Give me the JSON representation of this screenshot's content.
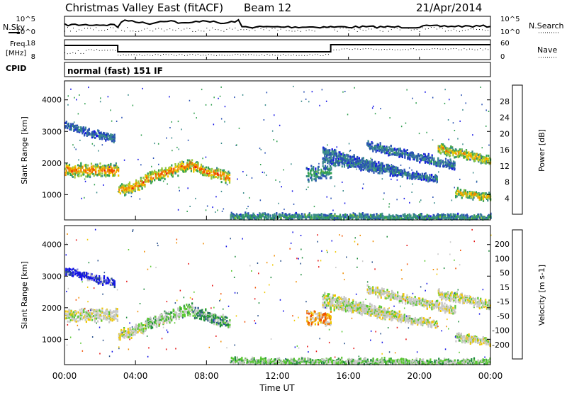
{
  "header": {
    "station": "Christmas Valley East (fitACF)",
    "beam": "Beam 12",
    "date": "21/Apr/2014"
  },
  "summary_panels": {
    "nsky_label": "N.Sky",
    "nsearch_label": "N.Search",
    "noise_ticks": [
      "10^5",
      "10^0"
    ],
    "freq_label_1": "Freq.",
    "freq_label_2": "[MHz]",
    "freq_ticks": [
      "18",
      "8"
    ],
    "nave_label": "Nave",
    "nave_ticks": [
      "60",
      "0"
    ],
    "cpid_label": "CPID",
    "cpid_text": "normal (fast) 151 IF"
  },
  "colors": {
    "power_scale": [
      "#1414e6",
      "#2850b4",
      "#3c8c8c",
      "#32a050",
      "#96c83c",
      "#f0c800",
      "#f08c00",
      "#f05000",
      "#e61414"
    ],
    "velocity_scale": [
      "#1414e6",
      "#28508c",
      "#1e8c3c",
      "#5ac832",
      "#c8c8c8",
      "#f0c800",
      "#f08c00",
      "#f05000",
      "#e61414"
    ],
    "ionospheric_grey": "#c8c8c8"
  },
  "chart_data": [
    {
      "type": "heatmap",
      "name": "power",
      "ylabel": "Slant Range [km]",
      "yticks": [
        1000,
        2000,
        3000,
        4000
      ],
      "ylim": [
        200,
        4600
      ],
      "xlim_hours": [
        0,
        24
      ],
      "colorbar": {
        "label": "Power [dB]",
        "ticks": [
          "4",
          "8",
          "12",
          "16",
          "20",
          "24",
          "28"
        ],
        "range": [
          0,
          32
        ]
      }
    },
    {
      "type": "heatmap",
      "name": "velocity",
      "ylabel": "Slant Range [km]",
      "yticks": [
        1000,
        2000,
        3000,
        4000
      ],
      "ylim": [
        200,
        4600
      ],
      "xlim_hours": [
        0,
        24
      ],
      "colorbar": {
        "label": "Velocity [m s-1]",
        "ticks": [
          "200",
          "100",
          "50",
          "15",
          "-15",
          "-50",
          "-100",
          "-200"
        ]
      }
    }
  ],
  "xaxis": {
    "label": "Time UT",
    "ticks": [
      "00:00",
      "04:00",
      "08:00",
      "12:00",
      "16:00",
      "20:00",
      "00:00"
    ]
  }
}
